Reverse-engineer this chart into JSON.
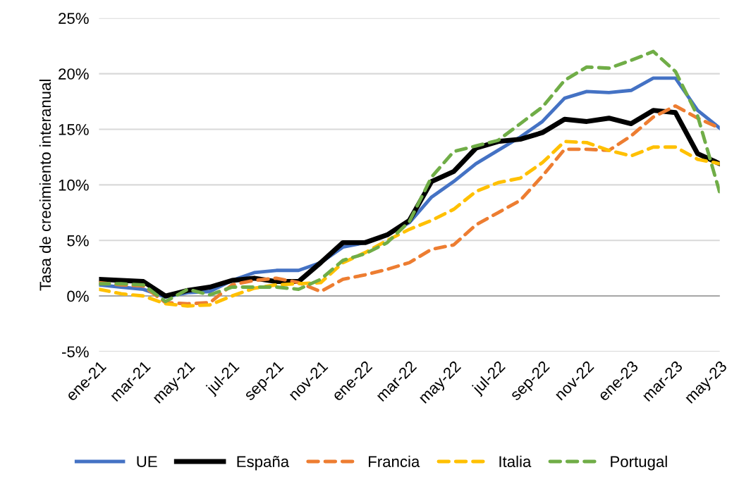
{
  "chart_data": {
    "type": "line",
    "ylabel": "Tasa de crecimiento interanual",
    "categories": [
      "ene-21",
      null,
      "mar-21",
      null,
      "may-21",
      null,
      "jul-21",
      null,
      "sep-21",
      null,
      "nov-21",
      null,
      "ene-22",
      null,
      "mar-22",
      null,
      "may-22",
      null,
      "jul-22",
      null,
      "sep-22",
      null,
      "nov-22",
      null,
      "ene-23",
      null,
      "mar-23",
      null,
      "may-23"
    ],
    "series": [
      {
        "name": "UE",
        "color": "#4472c4",
        "line_style": "solid",
        "values": [
          1.0,
          0.8,
          0.6,
          -0.1,
          0.3,
          0.4,
          1.4,
          2.1,
          2.3,
          2.3,
          3.0,
          4.4,
          4.8,
          5.5,
          6.6,
          8.9,
          10.3,
          11.9,
          13.1,
          14.3,
          15.7,
          17.8,
          18.4,
          18.3,
          18.5,
          19.6,
          19.6,
          16.7,
          15.1
        ]
      },
      {
        "name": "España",
        "color": "#000000",
        "line_style": "solid",
        "values": [
          1.5,
          1.4,
          1.3,
          0.0,
          0.5,
          0.8,
          1.4,
          1.6,
          1.3,
          1.3,
          3.0,
          4.8,
          4.8,
          5.5,
          6.8,
          10.3,
          11.2,
          13.3,
          13.9,
          14.1,
          14.7,
          15.9,
          15.7,
          16.0,
          15.5,
          16.7,
          16.5,
          12.8,
          11.9
        ]
      },
      {
        "name": "Francia",
        "color": "#ed7d31",
        "line_style": "dashed",
        "values": [
          1.2,
          1.0,
          0.9,
          -0.6,
          -0.7,
          -0.6,
          1.0,
          1.4,
          1.6,
          1.2,
          0.4,
          1.5,
          1.9,
          2.4,
          3.0,
          4.2,
          4.6,
          6.4,
          7.5,
          8.6,
          10.8,
          13.2,
          13.2,
          13.1,
          14.4,
          16.1,
          17.1,
          16.0,
          15.1
        ]
      },
      {
        "name": "Italia",
        "color": "#ffc000",
        "line_style": "dashed",
        "values": [
          0.6,
          0.2,
          0.0,
          -0.7,
          -0.9,
          -0.8,
          0.0,
          0.7,
          1.0,
          1.1,
          1.2,
          3.0,
          3.9,
          5.0,
          6.0,
          6.8,
          7.8,
          9.4,
          10.2,
          10.6,
          12.0,
          13.9,
          13.8,
          13.1,
          12.6,
          13.4,
          13.4,
          12.3,
          11.9
        ]
      },
      {
        "name": "Portugal",
        "color": "#70ad47",
        "line_style": "dashed",
        "values": [
          1.1,
          1.1,
          1.0,
          -0.5,
          0.6,
          0.1,
          0.8,
          0.8,
          0.8,
          0.6,
          1.5,
          3.2,
          3.8,
          4.8,
          6.7,
          10.7,
          13.0,
          13.5,
          14.0,
          15.5,
          17.0,
          19.4,
          20.6,
          20.5,
          21.2,
          22.0,
          20.2,
          16.2,
          9.3
        ]
      }
    ],
    "ylim": [
      -5,
      25
    ],
    "yticks": [
      {
        "value": -5,
        "label": "-5%"
      },
      {
        "value": 0,
        "label": "0%"
      },
      {
        "value": 5,
        "label": "5%"
      },
      {
        "value": 10,
        "label": "10%"
      },
      {
        "value": 15,
        "label": "15%"
      },
      {
        "value": 20,
        "label": "20%"
      },
      {
        "value": 25,
        "label": "25%"
      }
    ],
    "ref_lines": [
      {
        "axis": "y",
        "value": 0,
        "color": "#a6a6a6"
      }
    ],
    "grid": "y",
    "legend": "bottom",
    "marker": "none"
  }
}
